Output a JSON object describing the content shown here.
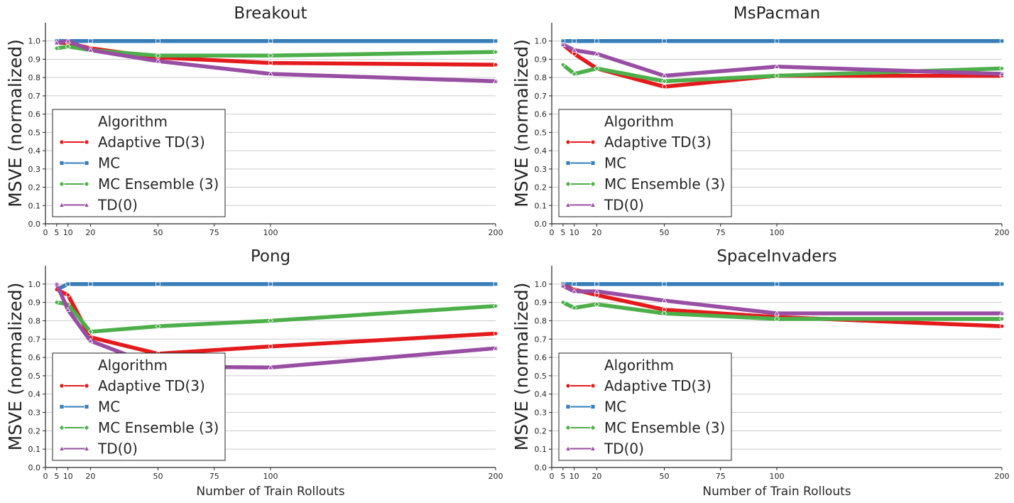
{
  "chart_data": [
    {
      "type": "line",
      "title": "Breakout",
      "xlabel": "",
      "ylabel": "MSVE (normalized)",
      "x": [
        5,
        10,
        20,
        50,
        100,
        200
      ],
      "xticks": [
        0,
        5,
        10,
        20,
        50,
        75,
        100,
        200
      ],
      "yticks": [
        0.0,
        0.1,
        0.2,
        0.3,
        0.4,
        0.5,
        0.6,
        0.7,
        0.8,
        0.9,
        1.0
      ],
      "ylim": [
        0,
        1.1
      ],
      "grid": "horizontal",
      "legend": {
        "title": "Algorithm",
        "position": "lower-left"
      },
      "series": [
        {
          "name": "Adaptive TD(3)",
          "color": "#e41a1c",
          "marker": "circle",
          "values": [
            0.99,
            0.99,
            0.96,
            0.91,
            0.88,
            0.87
          ]
        },
        {
          "name": "MC",
          "color": "#377eb8",
          "marker": "square",
          "values": [
            1.0,
            1.0,
            1.0,
            1.0,
            1.0,
            1.0
          ]
        },
        {
          "name": "MC Ensemble (3)",
          "color": "#4daf4a",
          "marker": "diamond",
          "values": [
            0.96,
            0.97,
            0.95,
            0.92,
            0.92,
            0.94
          ]
        },
        {
          "name": "TD(0)",
          "color": "#984ea3",
          "marker": "triangle",
          "values": [
            0.99,
            1.0,
            0.95,
            0.89,
            0.82,
            0.78
          ]
        }
      ]
    },
    {
      "type": "line",
      "title": "MsPacman",
      "xlabel": "",
      "ylabel": "MSVE (normalized)",
      "x": [
        5,
        10,
        20,
        50,
        100,
        200
      ],
      "xticks": [
        0,
        5,
        10,
        20,
        50,
        75,
        100,
        200
      ],
      "yticks": [
        0.0,
        0.1,
        0.2,
        0.3,
        0.4,
        0.5,
        0.6,
        0.7,
        0.8,
        0.9,
        1.0
      ],
      "ylim": [
        0,
        1.1
      ],
      "grid": "horizontal",
      "legend": {
        "title": "Algorithm",
        "position": "lower-left"
      },
      "series": [
        {
          "name": "Adaptive TD(3)",
          "color": "#e41a1c",
          "marker": "circle",
          "values": [
            0.98,
            0.93,
            0.85,
            0.75,
            0.81,
            0.81
          ]
        },
        {
          "name": "MC",
          "color": "#377eb8",
          "marker": "square",
          "values": [
            1.0,
            1.0,
            1.0,
            1.0,
            1.0,
            1.0
          ]
        },
        {
          "name": "MC Ensemble (3)",
          "color": "#4daf4a",
          "marker": "diamond",
          "values": [
            0.87,
            0.82,
            0.85,
            0.78,
            0.81,
            0.85
          ]
        },
        {
          "name": "TD(0)",
          "color": "#984ea3",
          "marker": "triangle",
          "values": [
            0.98,
            0.95,
            0.93,
            0.81,
            0.86,
            0.82
          ]
        }
      ]
    },
    {
      "type": "line",
      "title": "Pong",
      "xlabel": "Number of Train Rollouts",
      "ylabel": "MSVE (normalized)",
      "x": [
        5,
        10,
        20,
        50,
        100,
        200
      ],
      "xticks": [
        0,
        5,
        10,
        20,
        50,
        75,
        100,
        200
      ],
      "yticks": [
        0.0,
        0.1,
        0.2,
        0.3,
        0.4,
        0.5,
        0.6,
        0.7,
        0.8,
        0.9,
        1.0
      ],
      "ylim": [
        0,
        1.1
      ],
      "grid": "horizontal",
      "legend": {
        "title": "Algorithm",
        "position": "lower-left"
      },
      "series": [
        {
          "name": "Adaptive TD(3)",
          "color": "#e41a1c",
          "marker": "circle",
          "values": [
            0.97,
            0.94,
            0.71,
            0.62,
            0.66,
            0.73
          ]
        },
        {
          "name": "MC",
          "color": "#377eb8",
          "marker": "square",
          "values": [
            0.97,
            1.0,
            1.0,
            1.0,
            1.0,
            1.0
          ]
        },
        {
          "name": "MC Ensemble (3)",
          "color": "#4daf4a",
          "marker": "diamond",
          "values": [
            0.9,
            0.89,
            0.74,
            0.77,
            0.8,
            0.88
          ]
        },
        {
          "name": "TD(0)",
          "color": "#984ea3",
          "marker": "triangle",
          "values": [
            1.0,
            0.86,
            0.69,
            0.55,
            0.545,
            0.65
          ]
        }
      ]
    },
    {
      "type": "line",
      "title": "SpaceInvaders",
      "xlabel": "Number of Train Rollouts",
      "ylabel": "MSVE (normalized)",
      "x": [
        5,
        10,
        20,
        50,
        100,
        200
      ],
      "xticks": [
        0,
        5,
        10,
        20,
        50,
        75,
        100,
        200
      ],
      "yticks": [
        0.0,
        0.1,
        0.2,
        0.3,
        0.4,
        0.5,
        0.6,
        0.7,
        0.8,
        0.9,
        1.0
      ],
      "ylim": [
        0,
        1.1
      ],
      "grid": "horizontal",
      "legend": {
        "title": "Algorithm",
        "position": "lower-left"
      },
      "series": [
        {
          "name": "Adaptive TD(3)",
          "color": "#e41a1c",
          "marker": "circle",
          "values": [
            0.99,
            0.97,
            0.94,
            0.86,
            0.82,
            0.77
          ]
        },
        {
          "name": "MC",
          "color": "#377eb8",
          "marker": "square",
          "values": [
            1.0,
            1.0,
            1.0,
            1.0,
            1.0,
            1.0
          ]
        },
        {
          "name": "MC Ensemble (3)",
          "color": "#4daf4a",
          "marker": "diamond",
          "values": [
            0.9,
            0.87,
            0.89,
            0.84,
            0.81,
            0.81
          ]
        },
        {
          "name": "TD(0)",
          "color": "#984ea3",
          "marker": "triangle",
          "values": [
            0.99,
            0.96,
            0.96,
            0.91,
            0.84,
            0.84
          ]
        }
      ]
    }
  ]
}
